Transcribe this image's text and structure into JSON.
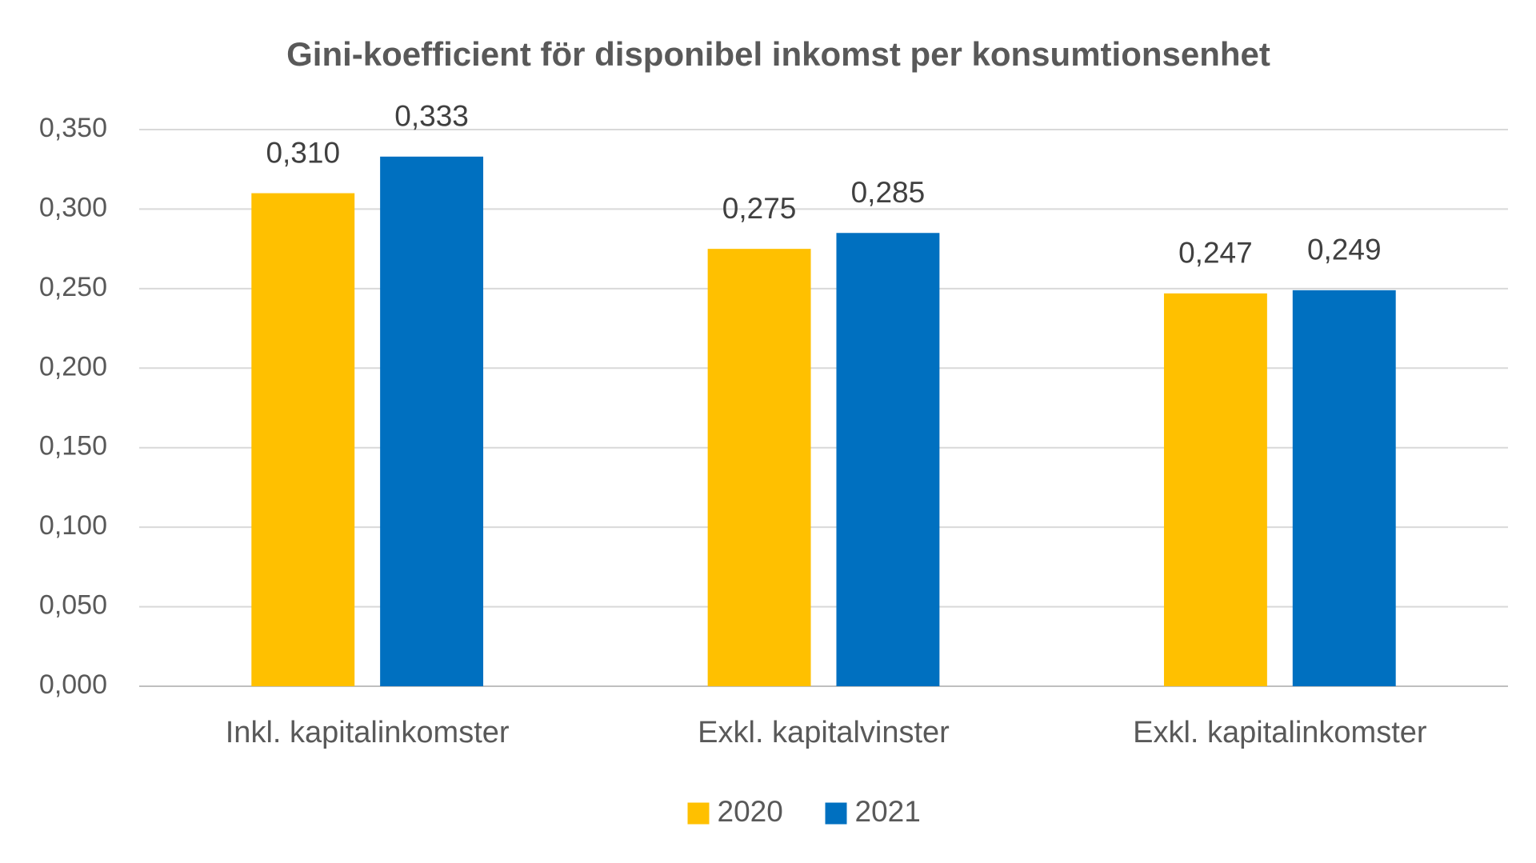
{
  "chart_data": {
    "type": "bar",
    "title": "Gini-koefficient för disponibel inkomst per konsumtionsenhet",
    "categories": [
      "Inkl. kapitalinkomster",
      "Exkl. kapitalvinster",
      "Exkl. kapitalinkomster"
    ],
    "series": [
      {
        "name": "2020",
        "color": "#ffc000",
        "values": [
          0.31,
          0.275,
          0.247
        ],
        "value_labels": [
          "0,310",
          "0,275",
          "0,247"
        ]
      },
      {
        "name": "2021",
        "color": "#0070c0",
        "values": [
          0.333,
          0.285,
          0.249
        ],
        "value_labels": [
          "0,333",
          "0,285",
          "0,249"
        ]
      }
    ],
    "ylim": [
      0,
      0.35
    ],
    "yticks": [
      {
        "value": 0,
        "label": "0,000"
      },
      {
        "value": 0.05,
        "label": "0,050"
      },
      {
        "value": 0.1,
        "label": "0,100"
      },
      {
        "value": 0.15,
        "label": "0,150"
      },
      {
        "value": 0.2,
        "label": "0,200"
      },
      {
        "value": 0.25,
        "label": "0,250"
      },
      {
        "value": 0.3,
        "label": "0,300"
      },
      {
        "value": 0.35,
        "label": "0,350"
      }
    ],
    "grid": true,
    "legend": "bottom"
  }
}
